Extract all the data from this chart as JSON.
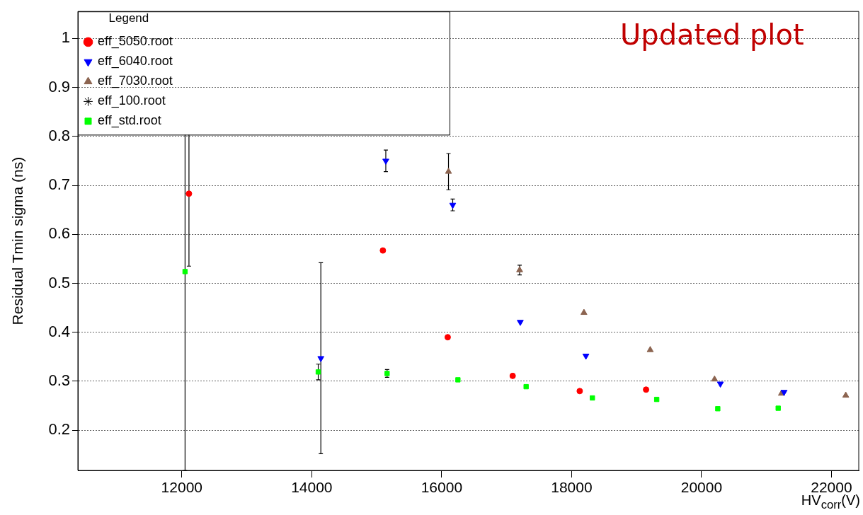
{
  "chart_data": {
    "type": "scatter",
    "xlabel": "HV$_{corr}$(V)",
    "ylabel": "Residual Tmin sigma (ns)",
    "legend_title": "Legend",
    "legend": "top left",
    "grid": "y",
    "annotations": [
      "Updated plot"
    ],
    "xlim": [
      10400,
      22420
    ],
    "xticks": [
      12000,
      14000,
      16000,
      18000,
      20000,
      22000
    ],
    "ylim": [
      0.118,
      1.055
    ],
    "yticks": [
      0.2,
      0.3,
      0.4,
      0.5,
      0.6,
      0.7,
      0.8,
      0.9,
      1
    ],
    "series": [
      {
        "name": "eff_5050.root",
        "color": "#ff0000",
        "marker": "circle",
        "x": [
          12110,
          15095,
          16093,
          17093,
          18125,
          19146
        ],
        "values": [
          0.683,
          0.567,
          0.39,
          0.311,
          0.28,
          0.283
        ],
        "errors": [
          0.148,
          null,
          null,
          null,
          null,
          null
        ]
      },
      {
        "name": "eff_6040.root",
        "color": "#0000ff",
        "marker": "triangle-down",
        "x": [
          14140,
          15140,
          16170,
          17210,
          18220,
          20290,
          21270
        ],
        "values": [
          0.347,
          0.75,
          0.66,
          0.421,
          0.352,
          0.295,
          0.278
        ],
        "errors": [
          0.195,
          0.022,
          0.012,
          null,
          null,
          null,
          null
        ]
      },
      {
        "name": "eff_7030.root",
        "color": "#8c6450",
        "marker": "triangle",
        "x": [
          16105,
          17200,
          18190,
          19210,
          20200,
          21230,
          22220
        ],
        "values": [
          0.728,
          0.527,
          0.44,
          0.364,
          0.304,
          0.275,
          0.271
        ],
        "errors": [
          0.037,
          0.01,
          null,
          null,
          null,
          null,
          null
        ]
      },
      {
        "name": "eff_100.root",
        "color": "#000000",
        "marker": "star"
      },
      {
        "name": "eff_std.root",
        "color": "#00ff00",
        "marker": "square",
        "x": [
          12050,
          14100,
          15160,
          16250,
          17300,
          18320,
          19310,
          20250,
          21180
        ],
        "values": [
          0.524,
          0.319,
          0.316,
          0.303,
          0.289,
          0.266,
          0.263,
          0.244,
          0.245
        ],
        "errors": [
          0.406,
          0.016,
          0.008,
          null,
          null,
          null,
          null,
          null,
          null
        ]
      }
    ]
  }
}
